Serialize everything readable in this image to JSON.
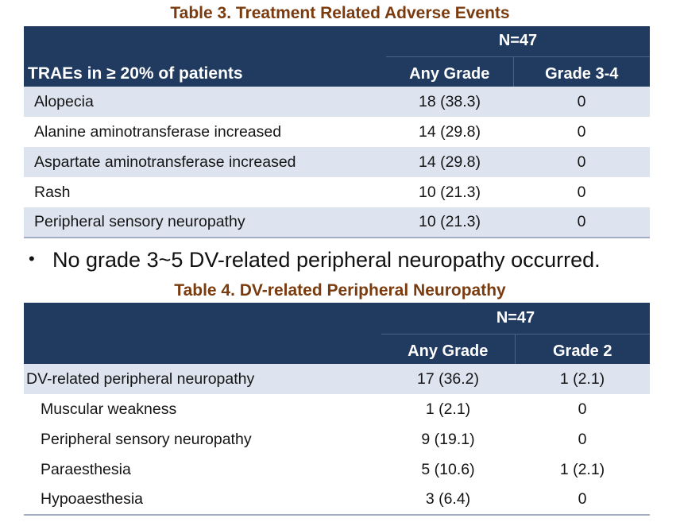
{
  "table3": {
    "caption": "Table 3. Treatment Related Adverse Events",
    "header": {
      "corner": "TRAEs in ≥ 20% of patients",
      "group": "N=47",
      "col_any": "Any Grade",
      "col_grade": "Grade 3-4"
    },
    "rows": [
      {
        "label": "Alopecia",
        "any": "18 (38.3)",
        "grade": "0"
      },
      {
        "label": "Alanine aminotransferase increased",
        "any": "14 (29.8)",
        "grade": "0"
      },
      {
        "label": "Aspartate aminotransferase increased",
        "any": "14 (29.8)",
        "grade": "0"
      },
      {
        "label": "Rash",
        "any": "10 (21.3)",
        "grade": "0"
      },
      {
        "label": "Peripheral sensory neuropathy",
        "any": "10 (21.3)",
        "grade": "0"
      }
    ]
  },
  "note": {
    "bullet": "•",
    "text": "No grade 3~5 DV-related peripheral neuropathy occurred."
  },
  "table4": {
    "caption": "Table 4. DV-related Peripheral Neuropathy",
    "header": {
      "corner": "",
      "group": "N=47",
      "col_any": "Any Grade",
      "col_grade": "Grade 2"
    },
    "rows": [
      {
        "label": "DV-related peripheral neuropathy",
        "any": "17 (36.2)",
        "grade": "1 (2.1)"
      },
      {
        "label": "Muscular weakness",
        "any": "1 (2.1)",
        "grade": "0"
      },
      {
        "label": "Peripheral sensory neuropathy",
        "any": "9 (19.1)",
        "grade": "0"
      },
      {
        "label": "Paraesthesia",
        "any": "5 (10.6)",
        "grade": "1 (2.1)"
      },
      {
        "label": "Hypoaesthesia",
        "any": "3 (6.4)",
        "grade": "0"
      }
    ]
  },
  "colors": {
    "header_bg": "#213a5f",
    "caption": "#7a3b0f",
    "row_shade": "#dde3ef"
  }
}
